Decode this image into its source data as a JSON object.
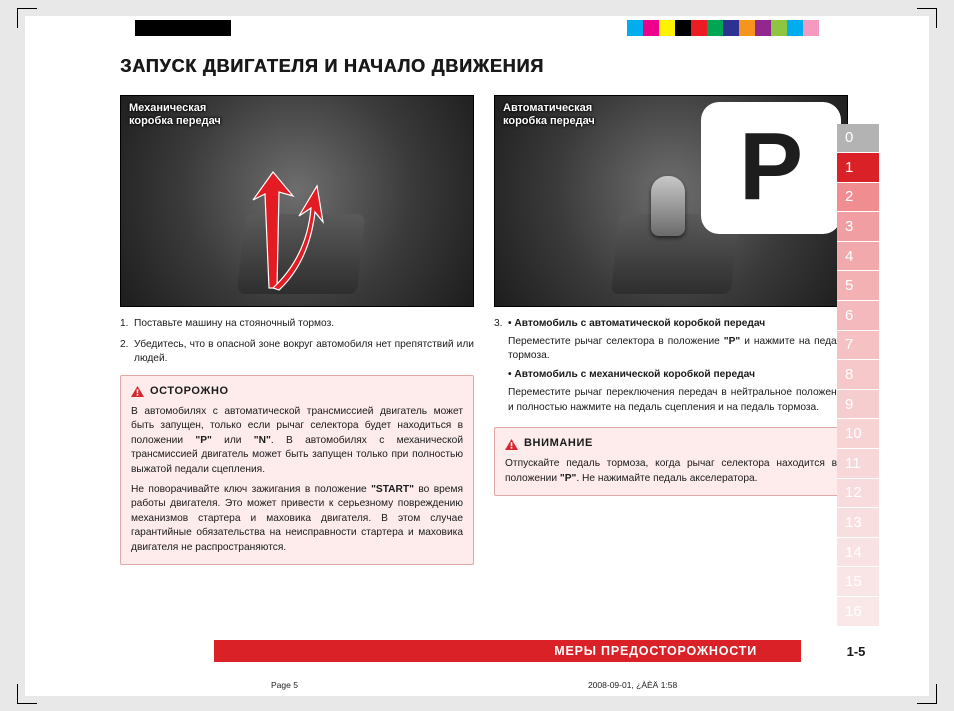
{
  "regmarks": {
    "black": "#000000",
    "colors": [
      "#00aeef",
      "#ec008c",
      "#fff200",
      "#000000",
      "#ed1c24",
      "#00a651",
      "#2e3192",
      "#f7941d",
      "#92278f",
      "#8dc63f",
      "#00adee",
      "#f49ac1"
    ]
  },
  "heading": "ЗАПУСК  ДВИГАТЕЛЯ  И  НАЧАЛО  ДВИЖЕНИЯ",
  "left": {
    "photo_caption_l1": "Механическая",
    "photo_caption_l2": "коробка передач",
    "step1_num": "1.",
    "step1": "Поставьте машину на стояночный тормоз.",
    "step2_num": "2.",
    "step2": "Убедитесь, что в опасной зоне вокруг автомобиля нет препятствий или людей.",
    "warn_title": "ОСТОРОЖНО",
    "warn_p1a": "В автомобилях с автоматической трансмиссией двигатель может быть запущен, только если рычаг селектора будет находиться в положении ",
    "warn_p1_p": "\"P\"",
    "warn_p1_or": " или ",
    "warn_p1_n": "\"N\"",
    "warn_p1b": ". В автомобилях с механической трансмиссией двигатель может быть запущен только при полностью выжатой педали сцепления.",
    "warn_p2a": "Не поворачивайте ключ зажигания в положение ",
    "warn_p2_start": "\"START\"",
    "warn_p2b": " во время работы двигателя. Это может привести к серьезному повреждению механизмов стартера и маховика двигателя. В этом случае гарантийные обязательства на неисправности стартера и маховика двигателя не распространяются."
  },
  "right": {
    "photo_caption_l1": "Автоматическая",
    "photo_caption_l2": "коробка передач",
    "p_badge": "P",
    "step3_num": "3.",
    "step3_b1": "•  Автомобиль с автоматической коробкой передач",
    "step3_t1a": "Переместите рычаг селектора в положение ",
    "step3_t1_p": "\"P\"",
    "step3_t1b": " и нажмите на педаль тормоза.",
    "step3_b2": "•  Автомобиль с механической коробкой передач",
    "step3_t2": "Переместите рычаг переключения передач в нейтральное положение и полностью нажмите на педаль сцепления и на педаль тормоза.",
    "warn_title": "ВНИМАНИЕ",
    "warn_p_a": "Отпускайте педаль тормоза, когда рычаг селектора находится в положении ",
    "warn_p_p": "\"P\"",
    "warn_p_b": ". Не нажимайте педаль акселератора."
  },
  "sidetabs": {
    "items": [
      "0",
      "1",
      "2",
      "3",
      "4",
      "5",
      "6",
      "7",
      "8",
      "9",
      "10",
      "11",
      "12",
      "13",
      "14",
      "15",
      "16"
    ],
    "active_index": 1,
    "colors": {
      "base_pre": "#b3b3b3",
      "active": "#da2128",
      "grad": [
        "#f08d91",
        "#f19ea2",
        "#f2a9ac",
        "#f3b1b4",
        "#f4b9bc",
        "#f5c1c3",
        "#f6c8ca",
        "#f6cdcf",
        "#f7d3d4",
        "#f8d7d9",
        "#f8dbdc",
        "#f9dedf",
        "#f9e2e3",
        "#fae5e6",
        "#fae8e9"
      ]
    }
  },
  "footer": {
    "title": "МЕРЫ  ПРЕДОСТОРОЖНОСТИ",
    "pagenum": "1-5",
    "meta_left": "Page 5",
    "meta_right": "2008-09-01, ¿ÀÈÄ 1:58"
  },
  "arrow_red": "#e31b23"
}
